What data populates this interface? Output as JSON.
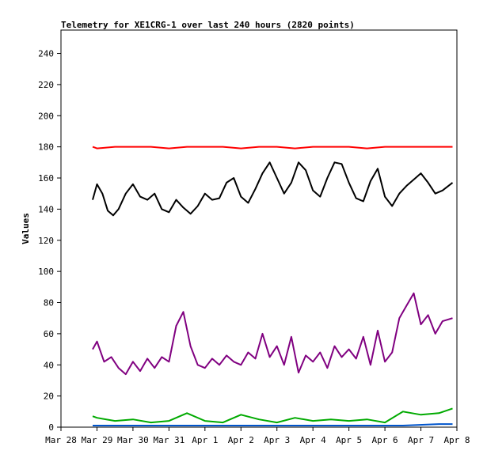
{
  "chart_data": {
    "type": "line",
    "title": "Telemetry for XE1CRG-1 over last 240 hours (2820 points)",
    "xlabel": "",
    "ylabel": "Values",
    "x_tick_labels": [
      "Mar 28",
      "Mar 29",
      "Mar 30",
      "Mar 31",
      "Apr 1",
      "Apr 2",
      "Apr 3",
      "Apr 4",
      "Apr 5",
      "Apr 6",
      "Apr 7",
      "Apr 8"
    ],
    "y_ticks": [
      0,
      20,
      40,
      60,
      80,
      100,
      120,
      140,
      160,
      180,
      200,
      220,
      240
    ],
    "xlim_days": [
      0,
      11
    ],
    "ylim": [
      0,
      255
    ],
    "grid": false,
    "series": [
      {
        "color": "#ff0000",
        "x": [
          0.88,
          1.0,
          1.5,
          2.0,
          2.5,
          3.0,
          3.5,
          4.0,
          4.5,
          5.0,
          5.5,
          6.0,
          6.5,
          7.0,
          7.5,
          8.0,
          8.5,
          9.0,
          9.5,
          10.0,
          10.5,
          10.88
        ],
        "values": [
          180,
          179,
          180,
          180,
          180,
          179,
          180,
          180,
          180,
          179,
          180,
          180,
          179,
          180,
          180,
          180,
          179,
          180,
          180,
          180,
          180,
          180
        ]
      },
      {
        "color": "#000000",
        "x": [
          0.88,
          1.0,
          1.15,
          1.3,
          1.45,
          1.6,
          1.8,
          2.0,
          2.2,
          2.4,
          2.6,
          2.8,
          3.0,
          3.2,
          3.4,
          3.6,
          3.8,
          4.0,
          4.2,
          4.4,
          4.6,
          4.8,
          5.0,
          5.2,
          5.4,
          5.6,
          5.8,
          6.0,
          6.2,
          6.4,
          6.6,
          6.8,
          7.0,
          7.2,
          7.4,
          7.6,
          7.8,
          8.0,
          8.2,
          8.4,
          8.6,
          8.8,
          9.0,
          9.2,
          9.4,
          9.6,
          9.8,
          10.0,
          10.2,
          10.4,
          10.6,
          10.88
        ],
        "values": [
          146,
          156,
          150,
          139,
          136,
          140,
          150,
          156,
          148,
          146,
          150,
          140,
          138,
          146,
          141,
          137,
          142,
          150,
          146,
          147,
          157,
          160,
          148,
          144,
          153,
          163,
          170,
          160,
          150,
          157,
          170,
          165,
          152,
          148,
          160,
          170,
          169,
          157,
          147,
          145,
          158,
          166,
          148,
          142,
          150,
          155,
          159,
          163,
          157,
          150,
          152,
          157
        ]
      },
      {
        "color": "#800080",
        "x": [
          0.88,
          1.0,
          1.2,
          1.4,
          1.6,
          1.8,
          2.0,
          2.2,
          2.4,
          2.6,
          2.8,
          3.0,
          3.2,
          3.4,
          3.6,
          3.8,
          4.0,
          4.2,
          4.4,
          4.6,
          4.8,
          5.0,
          5.2,
          5.4,
          5.6,
          5.8,
          6.0,
          6.2,
          6.4,
          6.6,
          6.8,
          7.0,
          7.2,
          7.4,
          7.6,
          7.8,
          8.0,
          8.2,
          8.4,
          8.6,
          8.8,
          9.0,
          9.2,
          9.4,
          9.6,
          9.8,
          10.0,
          10.2,
          10.4,
          10.6,
          10.88
        ],
        "values": [
          50,
          55,
          42,
          45,
          38,
          34,
          42,
          36,
          44,
          38,
          45,
          42,
          65,
          74,
          52,
          40,
          38,
          44,
          40,
          46,
          42,
          40,
          48,
          44,
          60,
          45,
          52,
          40,
          58,
          35,
          46,
          42,
          48,
          38,
          52,
          45,
          50,
          44,
          58,
          40,
          62,
          42,
          48,
          70,
          78,
          86,
          66,
          72,
          60,
          68,
          70
        ]
      },
      {
        "color": "#00aa00",
        "x": [
          0.88,
          1.0,
          1.5,
          2.0,
          2.5,
          3.0,
          3.5,
          4.0,
          4.5,
          5.0,
          5.5,
          6.0,
          6.5,
          7.0,
          7.5,
          8.0,
          8.5,
          9.0,
          9.5,
          10.0,
          10.5,
          10.88
        ],
        "values": [
          7,
          6,
          4,
          5,
          3,
          4,
          9,
          4,
          3,
          8,
          5,
          3,
          6,
          4,
          5,
          4,
          5,
          3,
          10,
          8,
          9,
          12
        ]
      },
      {
        "color": "#0055cc",
        "x": [
          0.88,
          1.5,
          2.5,
          3.5,
          4.5,
          5.5,
          6.5,
          7.5,
          8.5,
          9.5,
          10.5,
          10.88
        ],
        "values": [
          1,
          1,
          1,
          1,
          1,
          1,
          1,
          1,
          1,
          1,
          2,
          2
        ]
      }
    ]
  }
}
